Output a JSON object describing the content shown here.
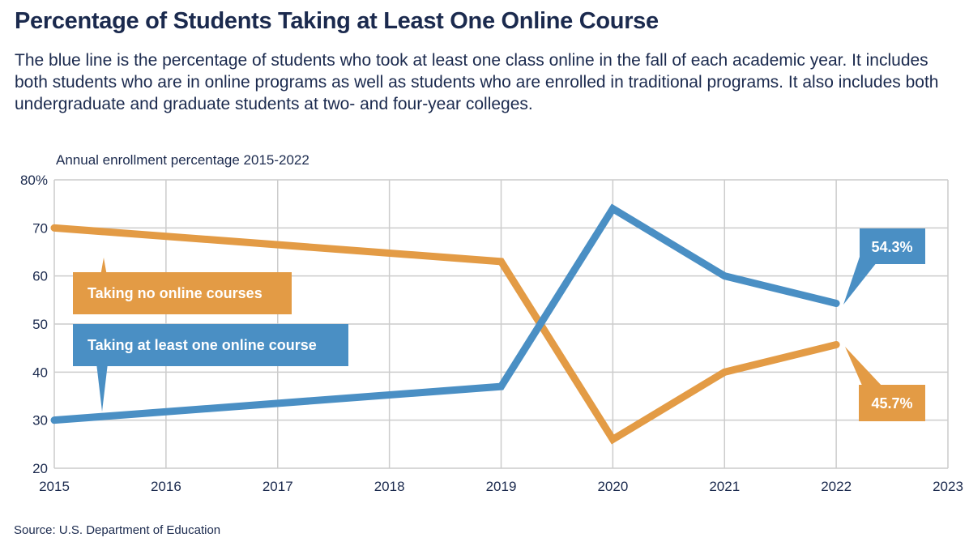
{
  "title": "Percentage of Students Taking at Least One Online Course",
  "subtitle": "The blue line is the percentage of students who took at least one class online in the fall of each academic year. It includes both students who are in online programs as well as students who are enrolled in traditional programs. It also includes both undergraduate and graduate students at two- and four-year colleges.",
  "source": "Source: U.S. Department of Education",
  "chart_data": {
    "type": "line",
    "title": "Percentage of Students Taking at Least One Online Course",
    "ylabel": "Annual enrollment percentage 2015-2022",
    "xlabel": "",
    "xlim": [
      2015,
      2023
    ],
    "ylim": [
      20,
      80
    ],
    "x_ticks": [
      "2015",
      "2016",
      "2017",
      "2018",
      "2019",
      "2020",
      "2021",
      "2022",
      "2023"
    ],
    "y_ticks": [
      "20",
      "30",
      "40",
      "50",
      "60",
      "70",
      "80%"
    ],
    "grid": true,
    "series": [
      {
        "name": "Taking no online courses",
        "color": "#e39b45",
        "x": [
          2015,
          2019,
          2020,
          2021,
          2022
        ],
        "values": [
          70,
          63,
          26,
          40,
          45.7
        ],
        "end_label": "45.7%"
      },
      {
        "name": "Taking at least one online course",
        "color": "#4a8fc4",
        "x": [
          2015,
          2019,
          2020,
          2021,
          2022
        ],
        "values": [
          30,
          37,
          74,
          60,
          54.3
        ],
        "end_label": "54.3%"
      }
    ]
  }
}
